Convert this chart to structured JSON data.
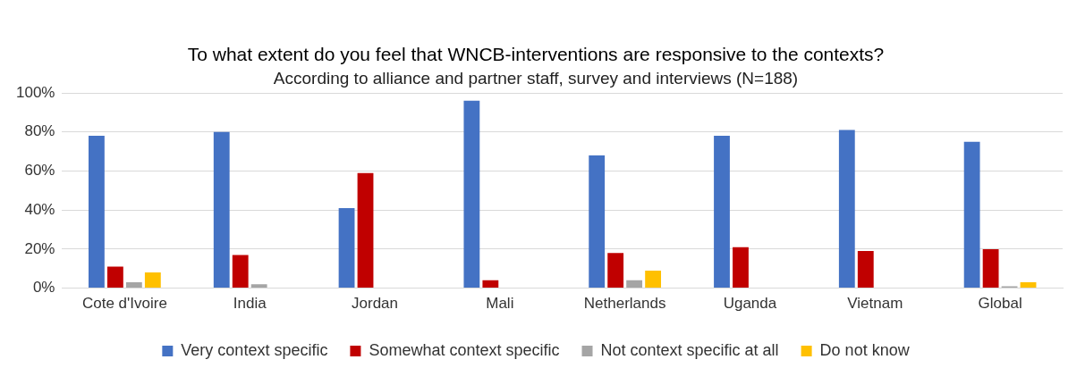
{
  "chart_data": {
    "type": "bar",
    "title": "To what extent do you feel that WNCB-interventions are responsive to the contexts?",
    "subtitle": "According to alliance and partner staff, survey and interviews (N=188)",
    "categories": [
      "Cote d'Ivoire",
      "India",
      "Jordan",
      "Mali",
      "Netherlands",
      "Uganda",
      "Vietnam",
      "Global"
    ],
    "series": [
      {
        "name": "Very context specific",
        "color": "#4472c4",
        "values": [
          78,
          80,
          41,
          96,
          68,
          78,
          81,
          75
        ]
      },
      {
        "name": "Somewhat context specific",
        "color": "#c00000",
        "values": [
          11,
          17,
          59,
          4,
          18,
          21,
          19,
          20
        ]
      },
      {
        "name": "Not context specific at all",
        "color": "#a5a5a5",
        "values": [
          3,
          2,
          0,
          0,
          4,
          0,
          0,
          1
        ]
      },
      {
        "name": "Do not know",
        "color": "#ffc000",
        "values": [
          8,
          0,
          0,
          0,
          9,
          0,
          0,
          3
        ]
      }
    ],
    "ylim": [
      0,
      100
    ],
    "yticks": [
      {
        "value": 0,
        "label": "0%"
      },
      {
        "value": 20,
        "label": "20%"
      },
      {
        "value": 40,
        "label": "40%"
      },
      {
        "value": 60,
        "label": "60%"
      },
      {
        "value": 80,
        "label": "80%"
      },
      {
        "value": 100,
        "label": "100%"
      }
    ],
    "grid": "y",
    "legend": "bottom"
  }
}
